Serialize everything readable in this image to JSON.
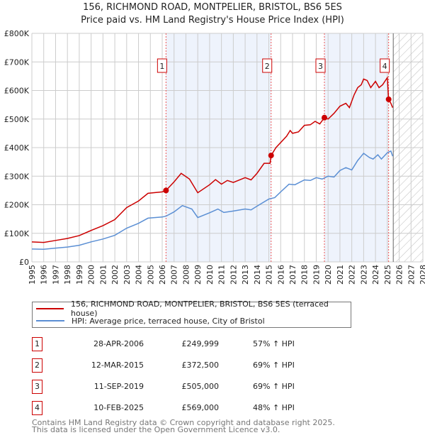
{
  "chart_data": {
    "type": "line",
    "title": "156, RICHMOND ROAD, MONTPELIER, BRISTOL, BS6 5ES",
    "subtitle": "Price paid vs. HM Land Registry's House Price Index (HPI)",
    "xlim": [
      1995,
      2028
    ],
    "ylim": [
      0,
      800000
    ],
    "x_ticks": [
      "1995",
      "1996",
      "1997",
      "1998",
      "1999",
      "2000",
      "2001",
      "2002",
      "2003",
      "2004",
      "2005",
      "2006",
      "2007",
      "2008",
      "2009",
      "2010",
      "2011",
      "2012",
      "2013",
      "2014",
      "2015",
      "2016",
      "2017",
      "2018",
      "2019",
      "2020",
      "2021",
      "2022",
      "2023",
      "2024",
      "2025",
      "2026",
      "2027",
      "2028"
    ],
    "y_ticks": [
      {
        "v": 0,
        "l": "£0"
      },
      {
        "v": 100000,
        "l": "£100K"
      },
      {
        "v": 200000,
        "l": "£200K"
      },
      {
        "v": 300000,
        "l": "£300K"
      },
      {
        "v": 400000,
        "l": "£400K"
      },
      {
        "v": 500000,
        "l": "£500K"
      },
      {
        "v": 600000,
        "l": "£600K"
      },
      {
        "v": 700000,
        "l": "£700K"
      },
      {
        "v": 800000,
        "l": "£800K"
      }
    ],
    "shaded_periods": [
      [
        2006.32,
        2015.19
      ],
      [
        2019.69,
        2025.11
      ]
    ],
    "forecast_hatch_from": 2025.5,
    "series": [
      {
        "name": "156, RICHMOND ROAD, MONTPELIER, BRISTOL, BS6 5ES (terraced house)",
        "color": "#cc0000",
        "x": [
          1995,
          1996,
          1997,
          1998,
          1999,
          2000,
          2001,
          2002,
          2003,
          2004,
          2004.8,
          2006,
          2006.32,
          2007,
          2007.6,
          2008.3,
          2009,
          2010,
          2010.5,
          2011,
          2011.5,
          2012,
          2013,
          2013.5,
          2014,
          2014.6,
          2015.1,
          2015.19,
          2015.6,
          2016.5,
          2016.8,
          2017,
          2017.5,
          2018,
          2018.5,
          2018.9,
          2019.3,
          2019.69,
          2020,
          2020.5,
          2021,
          2021.5,
          2021.8,
          2022.2,
          2022.5,
          2022.8,
          2023,
          2023.3,
          2023.6,
          2024,
          2024.3,
          2024.6,
          2025,
          2025.11,
          2025.3,
          2025.45
        ],
        "y": [
          70000,
          68000,
          75000,
          82000,
          92000,
          110000,
          127000,
          148000,
          190000,
          213000,
          240000,
          245000,
          249999,
          280000,
          310000,
          290000,
          242000,
          270000,
          288000,
          272000,
          285000,
          278000,
          295000,
          287000,
          310000,
          345000,
          345000,
          372500,
          400000,
          440000,
          460000,
          450000,
          455000,
          478000,
          480000,
          492000,
          483000,
          505000,
          500000,
          520000,
          545000,
          555000,
          540000,
          585000,
          610000,
          620000,
          640000,
          635000,
          610000,
          632000,
          610000,
          620000,
          645000,
          569000,
          555000,
          540000
        ]
      },
      {
        "name": "HPI: Average price, terraced house, City of Bristol",
        "color": "#5b8fd4",
        "x": [
          1995,
          1996,
          1997,
          1998,
          1999,
          2000,
          2001,
          2002,
          2003,
          2004,
          2004.8,
          2006,
          2006.32,
          2007,
          2007.7,
          2008.5,
          2009,
          2010,
          2010.7,
          2011.2,
          2012,
          2013,
          2013.5,
          2014,
          2015,
          2015.5,
          2016,
          2016.7,
          2017.2,
          2018,
          2018.5,
          2019,
          2019.5,
          2020,
          2020.5,
          2021,
          2021.5,
          2022,
          2022.5,
          2023,
          2023.5,
          2023.8,
          2024.2,
          2024.5,
          2025,
          2025.3,
          2025.45
        ],
        "y": [
          45000,
          44000,
          48000,
          52000,
          58000,
          70000,
          80000,
          93000,
          118000,
          135000,
          153000,
          157000,
          160000,
          175000,
          197000,
          185000,
          155000,
          172000,
          185000,
          173000,
          178000,
          185000,
          182000,
          195000,
          220000,
          225000,
          245000,
          272000,
          270000,
          287000,
          285000,
          295000,
          290000,
          300000,
          297000,
          320000,
          330000,
          322000,
          355000,
          380000,
          365000,
          360000,
          375000,
          360000,
          382000,
          388000,
          370000
        ]
      }
    ],
    "sales": [
      {
        "n": "1",
        "x": 2006.32,
        "y": 249999,
        "date": "28-APR-2006",
        "price": "£249,999",
        "hpi": "57% ↑ HPI"
      },
      {
        "n": "2",
        "x": 2015.19,
        "y": 372500,
        "date": "12-MAR-2015",
        "price": "£372,500",
        "hpi": "69% ↑ HPI"
      },
      {
        "n": "3",
        "x": 2019.69,
        "y": 505000,
        "date": "11-SEP-2019",
        "price": "£505,000",
        "hpi": "69% ↑ HPI"
      },
      {
        "n": "4",
        "x": 2025.11,
        "y": 569000,
        "date": "10-FEB-2025",
        "price": "£569,000",
        "hpi": "48% ↑ HPI"
      }
    ]
  },
  "footer": [
    "Contains HM Land Registry data © Crown copyright and database right 2025.",
    "This data is licensed under the Open Government Licence v3.0."
  ]
}
